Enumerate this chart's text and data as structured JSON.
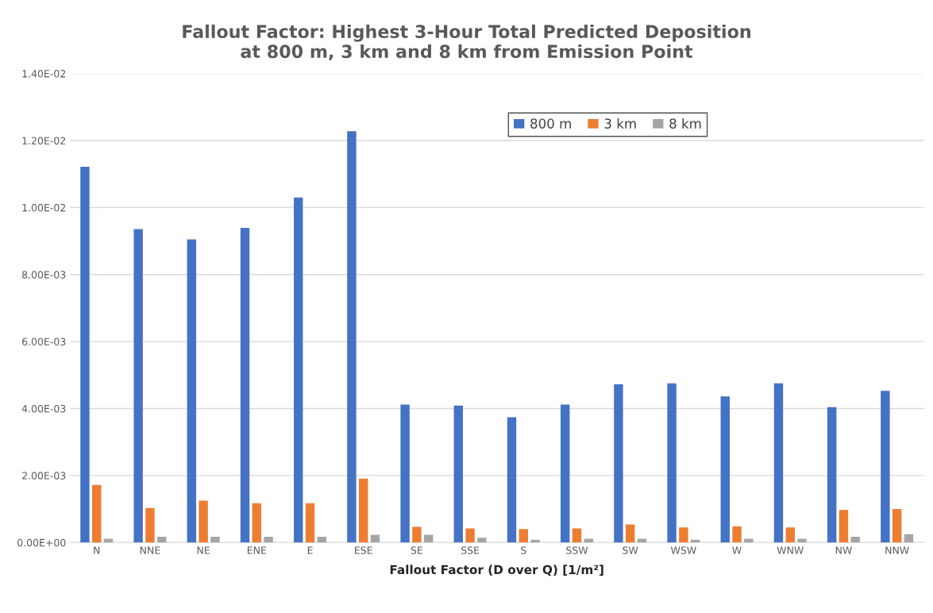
{
  "chart_data": {
    "type": "bar",
    "title": "Fallout Factor: Highest 3-Hour Total Predicted Deposition\nat 800 m, 3 km and 8 km from Emission Point",
    "xlabel": "Fallout Factor (D over Q) [1/m²]",
    "categories": [
      "N",
      "NNE",
      "NE",
      "ENE",
      "E",
      "ESE",
      "SE",
      "SSE",
      "S",
      "SSW",
      "SW",
      "WSW",
      "W",
      "WNW",
      "NW",
      "NNW"
    ],
    "series": [
      {
        "name": "800 m",
        "color": "#4472c4",
        "values": [
          0.01122,
          0.00936,
          0.00905,
          0.00939,
          0.0103,
          0.01228,
          0.00412,
          0.00409,
          0.00374,
          0.00412,
          0.00472,
          0.00475,
          0.00436,
          0.00475,
          0.00404,
          0.00453
        ]
      },
      {
        "name": "3 km",
        "color": "#ed7d31",
        "values": [
          0.00172,
          0.00103,
          0.00125,
          0.00117,
          0.00117,
          0.00191,
          0.00047,
          0.00042,
          0.0004,
          0.00042,
          0.00054,
          0.00045,
          0.00048,
          0.00045,
          0.00097,
          0.001
        ]
      },
      {
        "name": "8 km",
        "color": "#a5a5a5",
        "values": [
          0.00011,
          0.00017,
          0.00017,
          0.00017,
          0.00017,
          0.00023,
          0.00023,
          0.00014,
          8e-05,
          0.00011,
          0.00011,
          8e-05,
          0.00011,
          0.00011,
          0.00017,
          0.00025
        ]
      }
    ],
    "ylim": [
      0,
      0.014
    ],
    "yticks": [
      {
        "value": 0,
        "label": "0.00E+00"
      },
      {
        "value": 0.002,
        "label": "2.00E-03"
      },
      {
        "value": 0.004,
        "label": "4.00E-03"
      },
      {
        "value": 0.006,
        "label": "6.00E-03"
      },
      {
        "value": 0.008,
        "label": "8.00E-03"
      },
      {
        "value": 0.01,
        "label": "1.00E-02"
      },
      {
        "value": 0.012,
        "label": "1.20E-02"
      },
      {
        "value": 0.014,
        "label": "1.40E-02"
      }
    ],
    "grid": "y",
    "legend": "top"
  }
}
